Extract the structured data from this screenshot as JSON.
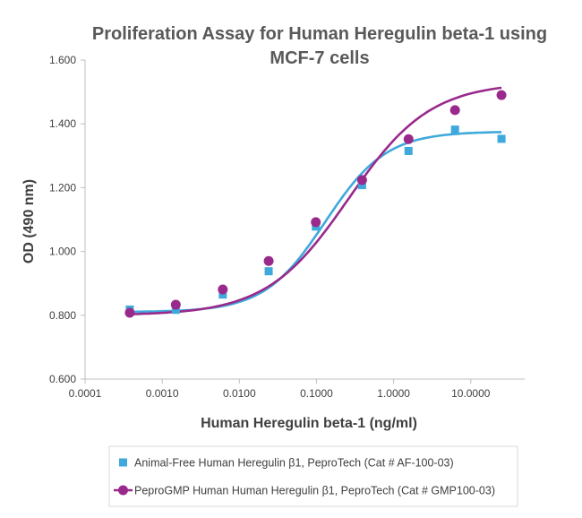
{
  "chart_data": {
    "type": "scatter",
    "title_lines": [
      "Proliferation Assay for Human Heregulin beta-1 using",
      "MCF-7 cells"
    ],
    "xlabel": "Human Heregulin beta-1 (ng/ml)",
    "ylabel": "OD (490 nm)",
    "x_scale": "log",
    "xlim": [
      0.0001,
      50
    ],
    "ylim": [
      0.6,
      1.6
    ],
    "x_ticks": [
      0.0001,
      0.001,
      0.01,
      0.1,
      1,
      10
    ],
    "x_tick_labels": [
      "0.0001",
      "0.0010",
      "0.0100",
      "0.1000",
      "1.0000",
      "10.0000"
    ],
    "y_ticks": [
      0.6,
      0.8,
      1.0,
      1.2,
      1.4,
      1.6
    ],
    "y_tick_labels": [
      "0.600",
      "0.800",
      "1.000",
      "1.200",
      "1.400",
      "1.600"
    ],
    "grid": false,
    "legend_position": "bottom",
    "series": [
      {
        "name": "Animal-Free Human Heregulin β1, PeproTech (Cat # AF-100-03)",
        "marker": "square",
        "color": "#3fa9dc",
        "x": [
          0.00038,
          0.0015,
          0.0061,
          0.024,
          0.098,
          0.39,
          1.56,
          6.25,
          25
        ],
        "y": [
          0.818,
          0.817,
          0.865,
          0.938,
          1.078,
          1.208,
          1.315,
          1.382,
          1.353
        ],
        "fit": {
          "bottom": 0.81,
          "top": 1.376,
          "ec50": 0.13,
          "hill": 1.1
        }
      },
      {
        "name": "PeproGMP Human Human Heregulin β1, PeproTech (Cat # GMP100-03)",
        "marker": "circle",
        "color": "#992a8c",
        "x": [
          0.00038,
          0.0015,
          0.0061,
          0.024,
          0.098,
          0.39,
          1.56,
          6.25,
          25
        ],
        "y": [
          0.808,
          0.833,
          0.881,
          0.97,
          1.092,
          1.224,
          1.352,
          1.443,
          1.49
        ],
        "fit": {
          "bottom": 0.8,
          "top": 1.53,
          "ec50": 0.26,
          "hill": 0.82
        }
      }
    ]
  }
}
